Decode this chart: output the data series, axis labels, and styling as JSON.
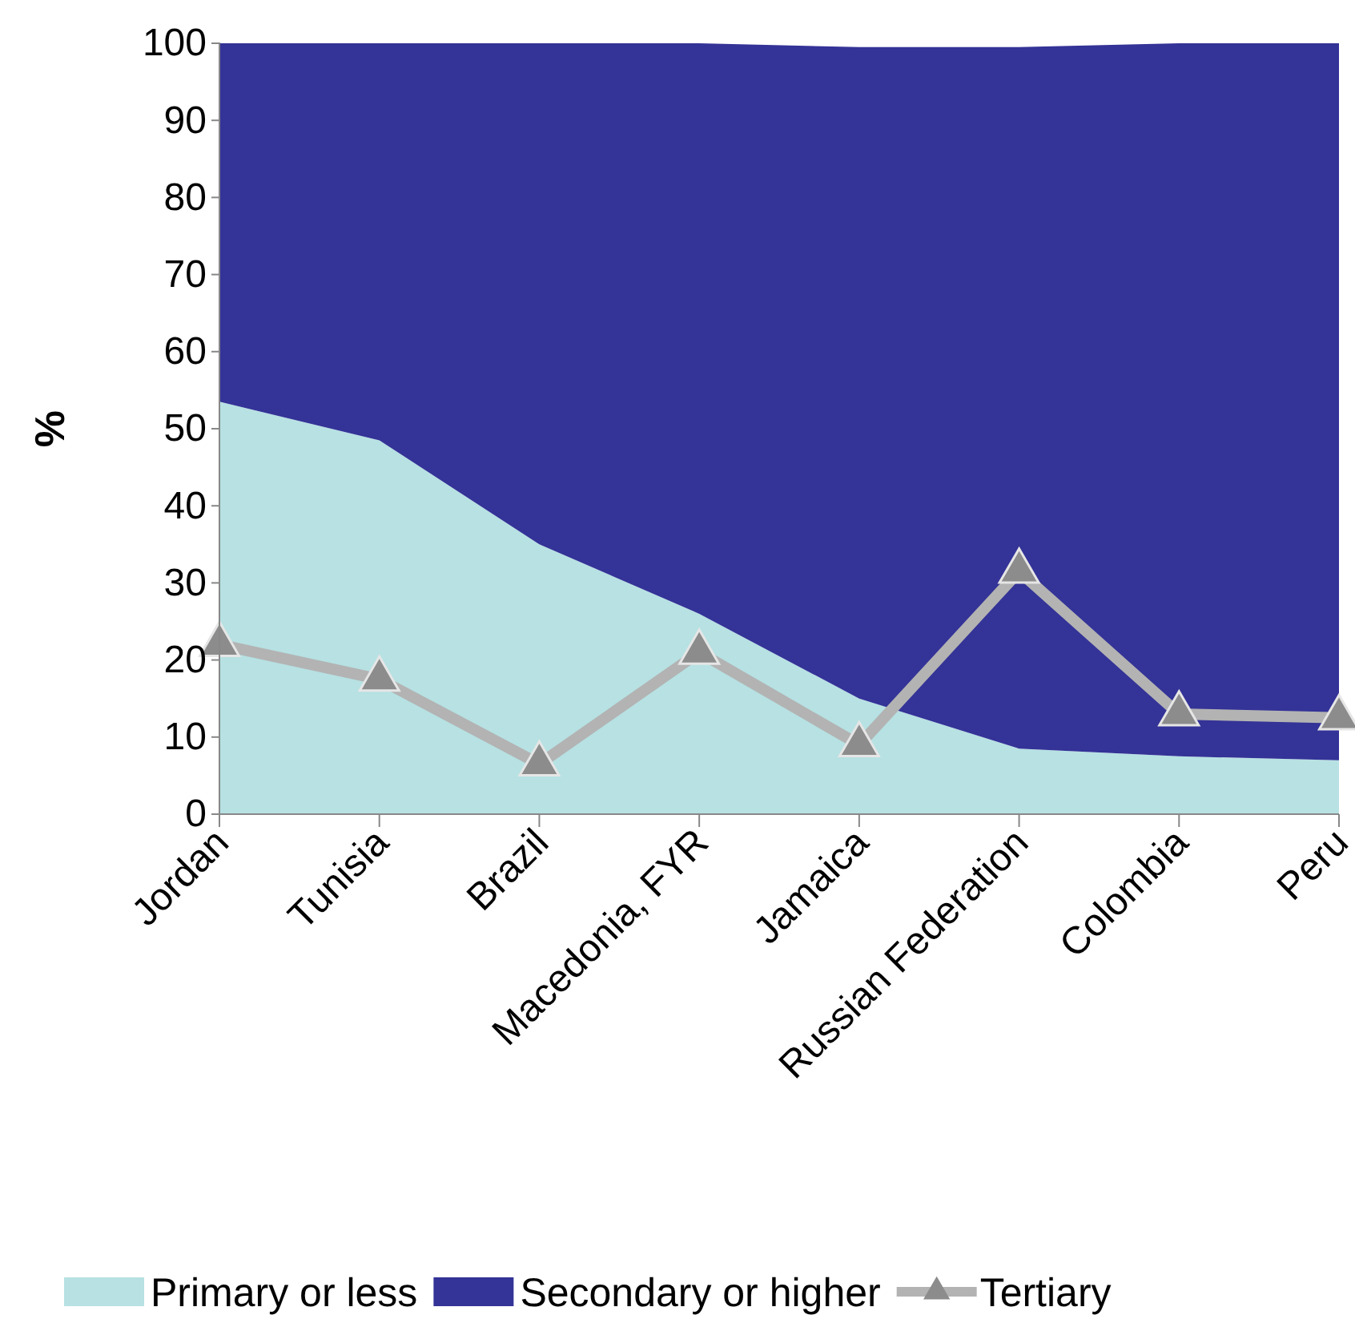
{
  "chart_data": {
    "type": "area",
    "stacked": true,
    "ylabel": "%",
    "categories": [
      "Jordan",
      "Tunisia",
      "Brazil",
      "Macedonia, FYR",
      "Jamaica",
      "Russian Federation",
      "Colombia",
      "Peru"
    ],
    "series": [
      {
        "name": "Primary or less",
        "color": "#b7e1e3",
        "values": [
          53.5,
          48.5,
          35,
          26,
          15,
          8.5,
          7.5,
          7
        ]
      },
      {
        "name": "Secondary or higher",
        "color": "#343397",
        "values": [
          46.5,
          51.5,
          65,
          74,
          84.5,
          91,
          92.5,
          93
        ]
      },
      {
        "name": "Tertiary",
        "type": "line",
        "color": "#b3b3b3",
        "marker": "triangle",
        "line_style": "solid",
        "values": [
          22,
          17.5,
          6.5,
          21,
          9,
          31.5,
          13,
          12.5
        ]
      }
    ],
    "ylim": [
      0,
      100
    ],
    "yticks": [
      0,
      10,
      20,
      30,
      40,
      50,
      60,
      70,
      80,
      90,
      100
    ],
    "grid": false,
    "legend": "bottom"
  }
}
